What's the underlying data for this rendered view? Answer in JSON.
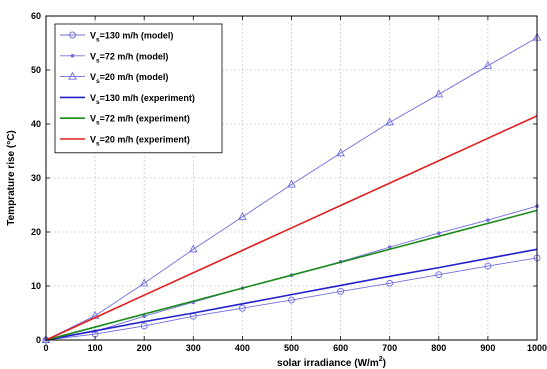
{
  "chart_data": {
    "type": "line",
    "xlabel": "solar irradiance (W/m",
    "xlabel_sup": "2",
    "xlabel_end": ")",
    "ylabel": "Temprature rise (°C)",
    "xlim": [
      0,
      1000
    ],
    "ylim": [
      0,
      60
    ],
    "x_ticks": [
      "0",
      "100",
      "200",
      "300",
      "400",
      "500",
      "600",
      "700",
      "800",
      "900",
      "1000"
    ],
    "y_ticks": [
      "0",
      "10",
      "20",
      "30",
      "40",
      "50",
      "60"
    ],
    "grid": true,
    "legend_position": "top-left",
    "x": [
      0,
      100,
      200,
      300,
      400,
      500,
      600,
      700,
      800,
      900,
      1000
    ],
    "series": [
      {
        "name_main": "V",
        "name_sub": "s",
        "name_rest": "=130 m/h (model)",
        "color": "#6f6fe0",
        "marker": "circle",
        "line": "thin",
        "values": [
          0,
          1.1,
          2.6,
          4.4,
          5.9,
          7.4,
          9.0,
          10.5,
          12.1,
          13.7,
          15.2
        ]
      },
      {
        "name_main": "V",
        "name_sub": "s",
        "name_rest": "=72 m/h (model)",
        "color": "#6f6fe0",
        "marker": "dot",
        "line": "thin",
        "values": [
          0,
          1.6,
          4.4,
          7.0,
          9.6,
          12.0,
          14.5,
          17.2,
          19.8,
          22.2,
          24.8
        ]
      },
      {
        "name_main": "V",
        "name_sub": "s",
        "name_rest": "=20 m/h (model)",
        "color": "#6f6fe0",
        "marker": "triangle",
        "line": "thin",
        "values": [
          0,
          4.5,
          10.5,
          16.8,
          22.8,
          28.8,
          34.6,
          40.3,
          45.5,
          50.8,
          56.0
        ]
      },
      {
        "name_main": "V",
        "name_sub": "s",
        "name_rest": "=130 m/h (experiment)",
        "color": "#2020cc",
        "marker": "none",
        "line": "thick",
        "values": [
          0,
          1.7,
          3.4,
          5.0,
          6.7,
          8.4,
          10.1,
          11.8,
          13.4,
          15.1,
          16.8
        ]
      },
      {
        "name_main": "V",
        "name_sub": "s",
        "name_rest": "=72 m/h  (experiment)",
        "color": "#1a8a1a",
        "marker": "none",
        "line": "thick",
        "values": [
          0,
          2.4,
          4.8,
          7.2,
          9.6,
          12.0,
          14.4,
          16.8,
          19.2,
          21.6,
          24.0
        ]
      },
      {
        "name_main": "V",
        "name_sub": "s",
        "name_rest": "=20 m/h  (experiment)",
        "color": "#e02020",
        "marker": "none",
        "line": "thick",
        "values": [
          0,
          4.15,
          8.3,
          12.45,
          16.6,
          20.75,
          24.9,
          29.05,
          33.2,
          37.35,
          41.5
        ]
      }
    ]
  }
}
